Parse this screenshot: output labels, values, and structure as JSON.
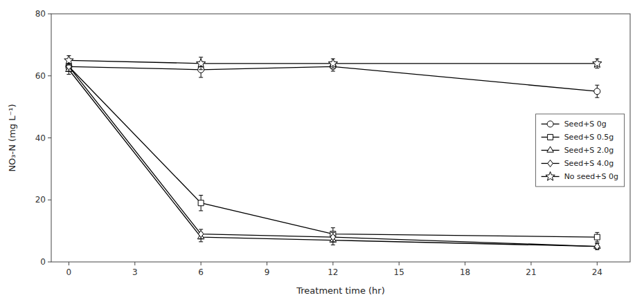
{
  "chart_data": {
    "type": "line",
    "xlabel": "Treatment time (hr)",
    "ylabel": "NO₃-N (mg L⁻¹)",
    "x": [
      0,
      6,
      12,
      24
    ],
    "series": [
      {
        "name": "Seed+S 0g",
        "values": [
          63,
          62,
          63,
          55
        ],
        "yerr": [
          1.5,
          2.5,
          1.5,
          2.0
        ],
        "marker": "circle"
      },
      {
        "name": "Seed+S 0.5g",
        "values": [
          63,
          19,
          9,
          8
        ],
        "yerr": [
          1.5,
          2.5,
          2.0,
          1.5
        ],
        "marker": "square"
      },
      {
        "name": "Seed+S 2.0g",
        "values": [
          62,
          8,
          7,
          5
        ],
        "yerr": [
          1.5,
          1.5,
          1.5,
          1.0
        ],
        "marker": "triangle"
      },
      {
        "name": "Seed+S 4.0g",
        "values": [
          63,
          9,
          8,
          5
        ],
        "yerr": [
          1.5,
          1.5,
          1.5,
          1.0
        ],
        "marker": "diamond"
      },
      {
        "name": "No seed+S 0g",
        "values": [
          65,
          64,
          64,
          64
        ],
        "yerr": [
          1.5,
          2.0,
          1.5,
          1.5
        ],
        "marker": "star"
      }
    ],
    "color": "black",
    "xlim": [
      -0.8,
      25.5
    ],
    "xticks": [
      0,
      3,
      6,
      9,
      12,
      15,
      18,
      21,
      24
    ],
    "ylim": [
      0,
      80
    ],
    "yticks": [
      0,
      20,
      40,
      60,
      80
    ],
    "grid": false,
    "legend": "right"
  }
}
